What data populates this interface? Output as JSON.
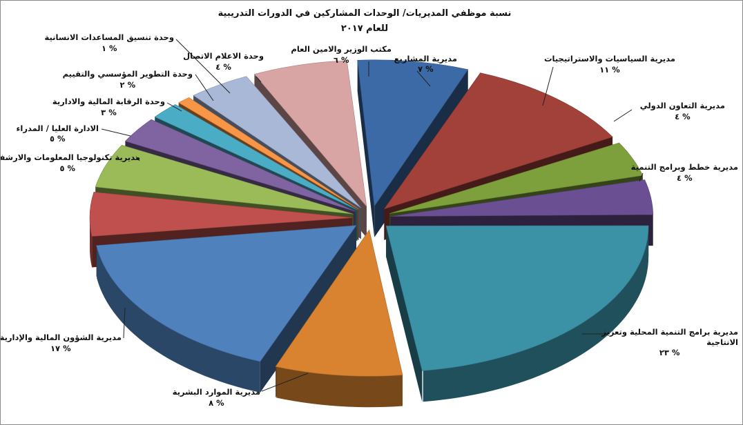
{
  "chart_data": {
    "type": "pie",
    "title_lines": [
      "نسبة موظفي المديريات/ الوحدات المشاركين في الدورات التدريبية",
      "للعام ٢٠١٧"
    ],
    "value_suffix": " %",
    "slices": [
      {
        "name": "مديرية المشاريع",
        "name_lines": [
          "مديرية المشاريع"
        ],
        "value": 7,
        "value_label": "٧",
        "color": "#3b6aa6"
      },
      {
        "name": "مديرية السياسيات والاستراتيجيات",
        "name_lines": [
          "مديرية السياسيات والاستراتيجيات"
        ],
        "value": 11,
        "value_label": "١١",
        "color": "#a2403a"
      },
      {
        "name": "مديرية التعاون الدولي",
        "name_lines": [
          "مديرية التعاون الدولي"
        ],
        "value": 4,
        "value_label": "٤",
        "color": "#7ea03c"
      },
      {
        "name": "مديرية خطط وبرامج التنمية",
        "name_lines": [
          "مديرية خطط وبرامج التنمية"
        ],
        "value": 4,
        "value_label": "٤",
        "color": "#6a4f92"
      },
      {
        "name": "مديرية برامج التنمية المحلية وتعزيز الانتاجية",
        "name_lines": [
          "مديرية برامج التنمية المحلية وتعزيز",
          "الانتاجية"
        ],
        "value": 23,
        "value_label": "٢٣",
        "color": "#3b92a6"
      },
      {
        "name": "مديرية الموارد البشرية",
        "name_lines": [
          "مديرية الموارد البشرية"
        ],
        "value": 8,
        "value_label": "٨",
        "color": "#d9822f"
      },
      {
        "name": "مديرية الشؤون المالية والإدارية",
        "name_lines": [
          "مديرية الشؤون المالية والإدارية"
        ],
        "value": 17,
        "value_label": "١٧",
        "color": "#4f81bd"
      },
      {
        "name": "مديرية تكنولوجيا المعلومات والارشفة",
        "name_lines": [
          "مديرية تكنولوجيا المعلومات والارشفة"
        ],
        "value": 5,
        "value_label": "٥",
        "color": "#c0504d"
      },
      {
        "name": "الادارة العليا / المدراء",
        "name_lines": [
          "الادارة العليا / المدراء"
        ],
        "value": 5,
        "value_label": "٥",
        "color": "#9bbb59"
      },
      {
        "name": "وحدة الرقابة المالية والادارية",
        "name_lines": [
          "وحدة الرقابة المالية والادارية"
        ],
        "value": 3,
        "value_label": "٣",
        "color": "#8064a2"
      },
      {
        "name": "وحدة التطوير المؤسسي والتقييم",
        "name_lines": [
          "وحدة التطوير المؤسسي والتقييم"
        ],
        "value": 2,
        "value_label": "٢",
        "color": "#4bacc6"
      },
      {
        "name": "وحدة تنسيق المساعدات الانسانية",
        "name_lines": [
          "وحدة تنسيق المساعدات الانسانية"
        ],
        "value": 1,
        "value_label": "١",
        "color": "#f79646"
      },
      {
        "name": "وحدة الاعلام الاتصال",
        "name_lines": [
          "وحدة   الاعلام الاتصال"
        ],
        "value": 4,
        "value_label": "٤",
        "color": "#aab8d8"
      },
      {
        "name": "مكتب الوزير والامين العام",
        "name_lines": [
          "مكتب الوزير والامين العام"
        ],
        "value": 6,
        "value_label": "٦",
        "color": "#d8a4a4"
      }
    ],
    "legend": "none",
    "style": "3d-exploded-pie"
  }
}
